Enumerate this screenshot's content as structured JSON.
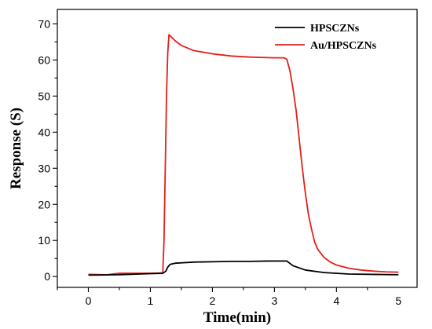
{
  "chart_data": {
    "type": "line",
    "xlabel": "Time(min)",
    "ylabel": "Response (S)",
    "xlim": [
      -0.5,
      5.3
    ],
    "ylim": [
      -3,
      74
    ],
    "xticks": [
      0,
      1,
      2,
      3,
      4,
      5
    ],
    "yticks": [
      0,
      10,
      20,
      30,
      40,
      50,
      60,
      70
    ],
    "grid": false,
    "legend_position": "top-right",
    "series": [
      {
        "name": "HPSCZNs",
        "color": "#000000",
        "x": [
          0,
          0.5,
          1.0,
          1.2,
          1.25,
          1.28,
          1.32,
          1.4,
          1.5,
          1.7,
          2.0,
          2.3,
          2.6,
          2.9,
          3.1,
          3.2,
          3.3,
          3.5,
          3.8,
          4.2,
          4.6,
          5.0
        ],
        "y": [
          0.4,
          0.5,
          0.8,
          0.9,
          1.5,
          2.6,
          3.4,
          3.7,
          3.8,
          4.0,
          4.1,
          4.2,
          4.2,
          4.3,
          4.3,
          4.3,
          3.0,
          1.8,
          1.1,
          0.7,
          0.6,
          0.5
        ]
      },
      {
        "name": "Au/HPSCZNs",
        "color": "#e3201b",
        "x": [
          0,
          0.3,
          0.5,
          1.0,
          1.2,
          1.22,
          1.24,
          1.26,
          1.28,
          1.3,
          1.4,
          1.5,
          1.7,
          2.0,
          2.3,
          2.6,
          3.0,
          3.15,
          3.2,
          3.25,
          3.3,
          3.35,
          3.4,
          3.45,
          3.5,
          3.55,
          3.6,
          3.65,
          3.7,
          3.8,
          3.9,
          4.0,
          4.2,
          4.4,
          4.6,
          4.8,
          5.0
        ],
        "y": [
          0.6,
          0.5,
          0.9,
          0.9,
          1.0,
          10,
          30,
          50,
          62,
          67,
          65.3,
          64.0,
          62.6,
          61.7,
          61.1,
          60.8,
          60.6,
          60.6,
          60.2,
          57,
          52,
          46,
          38,
          30,
          23,
          17,
          13,
          9.5,
          7.5,
          5.3,
          4.0,
          3.2,
          2.3,
          1.8,
          1.5,
          1.3,
          1.2
        ]
      }
    ]
  }
}
